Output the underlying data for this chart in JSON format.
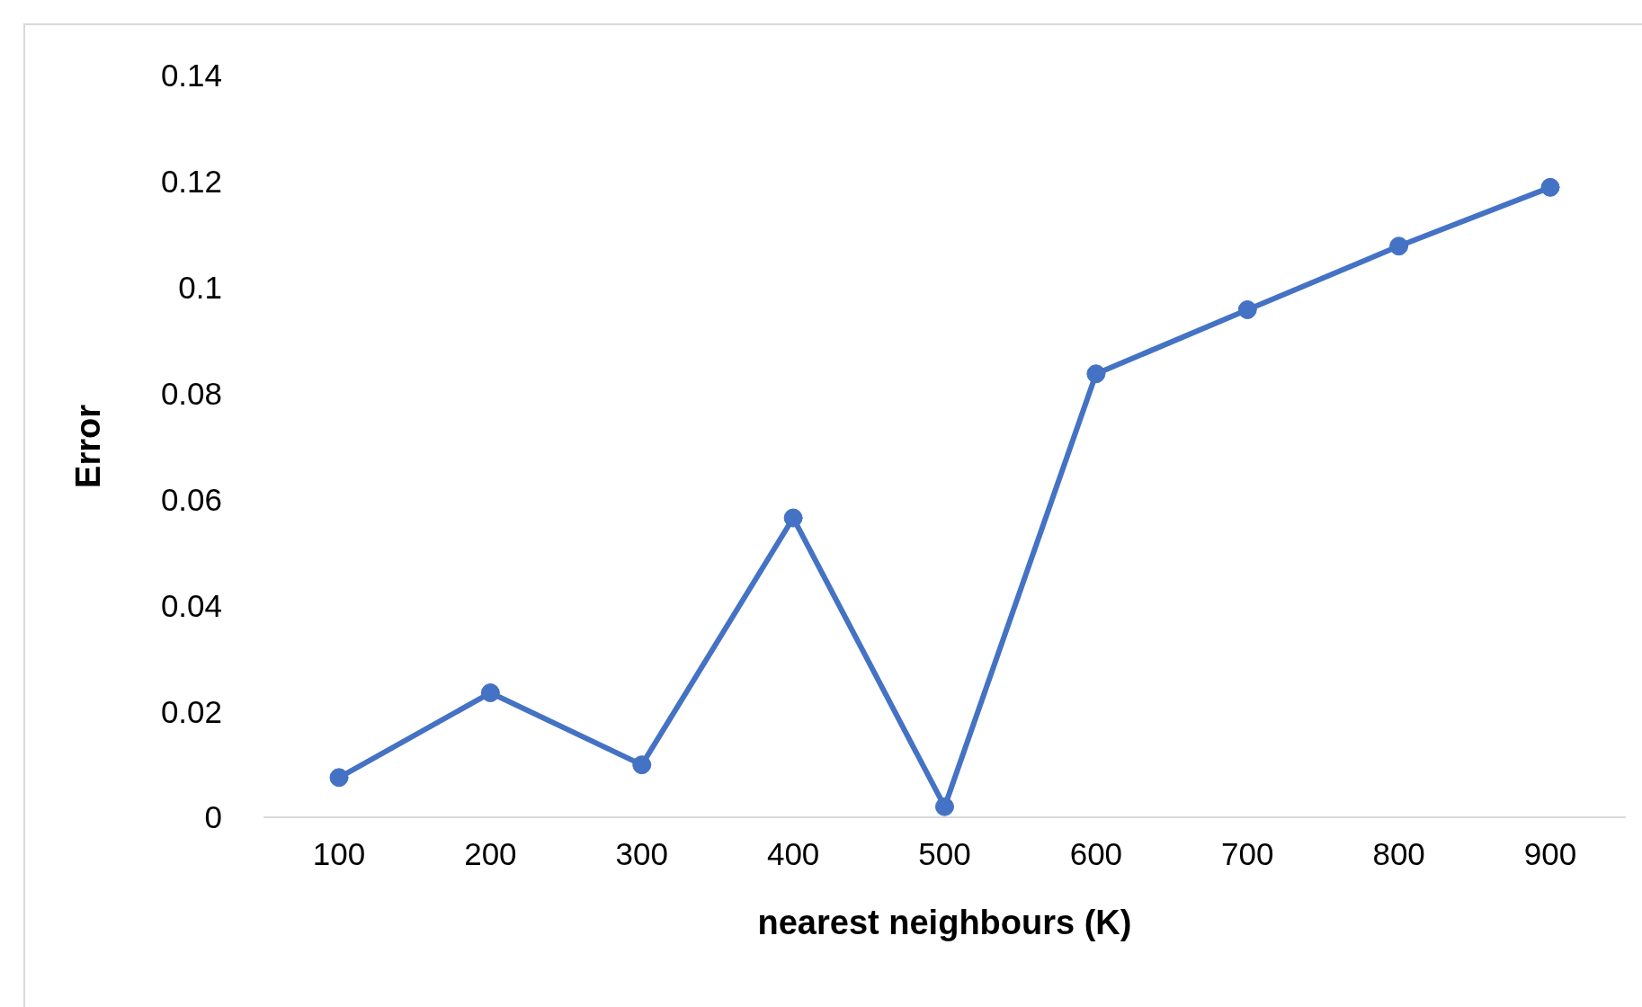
{
  "chart_data": {
    "type": "line",
    "xlabel": "nearest neighbours (K)",
    "ylabel": "Error",
    "categories": [
      "100",
      "200",
      "300",
      "400",
      "500",
      "600",
      "700",
      "800",
      "900"
    ],
    "series": [
      {
        "color": "#4472c4",
        "values": [
          0.0075,
          0.0235,
          0.0099,
          0.0565,
          0.002,
          0.0837,
          0.0958,
          0.1078,
          0.1189
        ]
      }
    ],
    "ylim": [
      0,
      0.14
    ],
    "yticks": [
      0,
      0.02,
      0.04,
      0.06,
      0.08,
      0.1,
      0.12,
      0.14
    ],
    "grid": false,
    "legend": false,
    "marker": "circle",
    "line_style": "solid"
  }
}
